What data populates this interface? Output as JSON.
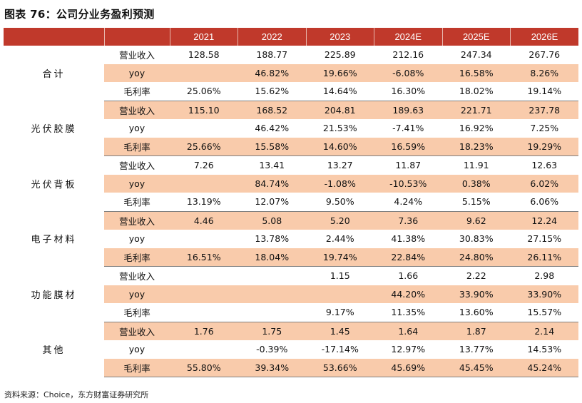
{
  "title": "图表 76：公司分业务盈利预测",
  "source": "资料来源：Choice，东方财富证券研究所",
  "table": {
    "years": [
      "2021",
      "2022",
      "2023",
      "2024E",
      "2025E",
      "2026E"
    ],
    "groups": [
      {
        "segment": "合计",
        "rows": [
          {
            "metric": "营业收入",
            "values": [
              "128.58",
              "188.77",
              "225.89",
              "212.16",
              "247.34",
              "267.76"
            ]
          },
          {
            "metric": "yoy",
            "values": [
              "",
              "46.82%",
              "19.66%",
              "-6.08%",
              "16.58%",
              "8.26%"
            ]
          },
          {
            "metric": "毛利率",
            "values": [
              "25.06%",
              "15.62%",
              "14.64%",
              "16.30%",
              "18.02%",
              "19.14%"
            ]
          }
        ]
      },
      {
        "segment": "光伏胶膜",
        "rows": [
          {
            "metric": "营业收入",
            "values": [
              "115.10",
              "168.52",
              "204.81",
              "189.63",
              "221.71",
              "237.78"
            ]
          },
          {
            "metric": "yoy",
            "values": [
              "",
              "46.42%",
              "21.53%",
              "-7.41%",
              "16.92%",
              "7.25%"
            ]
          },
          {
            "metric": "毛利率",
            "values": [
              "25.66%",
              "15.58%",
              "14.60%",
              "16.59%",
              "18.23%",
              "19.29%"
            ]
          }
        ]
      },
      {
        "segment": "光伏背板",
        "rows": [
          {
            "metric": "营业收入",
            "values": [
              "7.26",
              "13.41",
              "13.27",
              "11.87",
              "11.91",
              "12.63"
            ]
          },
          {
            "metric": "yoy",
            "values": [
              "",
              "84.74%",
              "-1.08%",
              "-10.53%",
              "0.38%",
              "6.02%"
            ]
          },
          {
            "metric": "毛利率",
            "values": [
              "13.19%",
              "12.07%",
              "9.50%",
              "4.24%",
              "5.15%",
              "6.06%"
            ]
          }
        ]
      },
      {
        "segment": "电子材料",
        "rows": [
          {
            "metric": "营业收入",
            "values": [
              "4.46",
              "5.08",
              "5.20",
              "7.36",
              "9.62",
              "12.24"
            ]
          },
          {
            "metric": "yoy",
            "values": [
              "",
              "13.78%",
              "2.44%",
              "41.38%",
              "30.83%",
              "27.15%"
            ]
          },
          {
            "metric": "毛利率",
            "values": [
              "16.51%",
              "18.04%",
              "19.74%",
              "22.84%",
              "24.80%",
              "26.11%"
            ]
          }
        ]
      },
      {
        "segment": "功能膜材",
        "rows": [
          {
            "metric": "营业收入",
            "values": [
              "",
              "",
              "1.15",
              "1.66",
              "2.22",
              "2.98"
            ]
          },
          {
            "metric": "yoy",
            "values": [
              "",
              "",
              "",
              "44.20%",
              "33.90%",
              "33.90%"
            ]
          },
          {
            "metric": "毛利率",
            "values": [
              "",
              "",
              "9.17%",
              "11.35%",
              "13.60%",
              "15.57%"
            ]
          }
        ]
      },
      {
        "segment": "其他",
        "rows": [
          {
            "metric": "营业收入",
            "values": [
              "1.76",
              "1.75",
              "1.45",
              "1.64",
              "1.87",
              "2.14"
            ]
          },
          {
            "metric": "yoy",
            "values": [
              "",
              "-0.39%",
              "-17.14%",
              "12.97%",
              "13.77%",
              "14.53%"
            ]
          },
          {
            "metric": "毛利率",
            "values": [
              "55.80%",
              "39.34%",
              "53.66%",
              "45.69%",
              "45.45%",
              "45.24%"
            ]
          }
        ]
      }
    ]
  }
}
